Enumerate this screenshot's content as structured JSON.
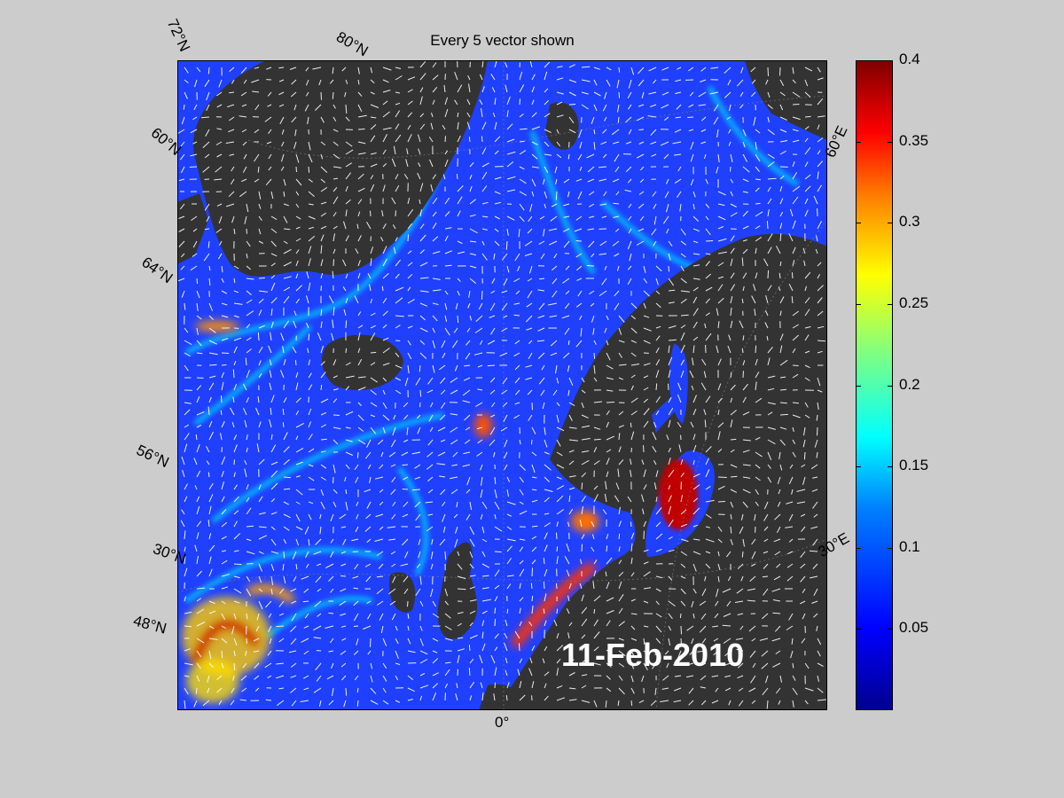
{
  "title": "Every 5 vector shown",
  "date_label": "11-Feb-2010",
  "colorbar": {
    "min": 0,
    "max": 0.4,
    "ticks": [
      "0.4",
      "0.35",
      "0.3",
      "0.25",
      "0.2",
      "0.15",
      "0.1",
      "0.05"
    ],
    "colormap": "jet"
  },
  "grid_labels": {
    "lat_72": "72°N",
    "lat_80": "80°N",
    "lat_60_top": "60°N",
    "lat_64": "64°N",
    "lat_56": "56°N",
    "lat_30": "30°N",
    "lat_48": "48°N",
    "lon_60e": "60°E",
    "lon_30e": "30°E",
    "lon_0": "0°"
  },
  "colors": {
    "land": "#333333",
    "figure_bg": "#cccccc",
    "ocean_low": "#1a3cff",
    "current_high": "#ff2000",
    "vectors": "#ffffff"
  }
}
